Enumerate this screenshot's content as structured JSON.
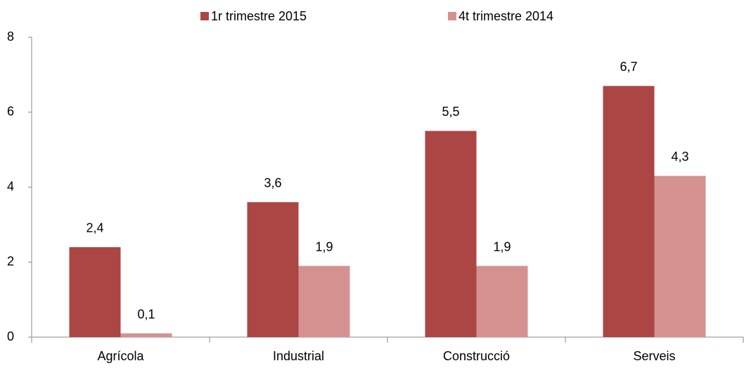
{
  "chart_data": {
    "type": "bar",
    "categories": [
      "Agrícola",
      "Industrial",
      "Construcció",
      "Serveis"
    ],
    "series": [
      {
        "name": "1r trimestre 2015",
        "color": "#ab4645",
        "values": [
          2.4,
          3.6,
          5.5,
          6.7
        ],
        "value_labels": [
          "2,4",
          "3,6",
          "5,5",
          "6,7"
        ]
      },
      {
        "name": "4t trimestre 2014",
        "color": "#d49190",
        "values": [
          0.1,
          1.9,
          1.9,
          4.3
        ],
        "value_labels": [
          "0,1",
          "1,9",
          "1,9",
          "4,3"
        ]
      }
    ],
    "ylim": [
      0,
      8
    ],
    "yticks": [
      0,
      2,
      4,
      6,
      8
    ],
    "grid": false,
    "legend": "top"
  }
}
